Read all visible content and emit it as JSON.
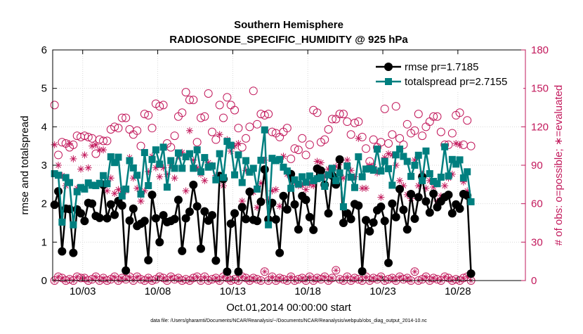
{
  "chart_data": {
    "type": "line",
    "title": "Southern Hemisphere",
    "subtitle": "RADIOSONDE_SPECIFIC_HUMIDITY @ 925 hPa",
    "xlabel": "Oct.01,2014 00:00:00 start",
    "ylabel": "rmse and totalspread",
    "y2label": "# of obs: o=possible; ∗=evaluated",
    "footnote": "data file: /Users/gharamti/Documents/NCAR/Reanalysis/~/Documents/NCAR/Reanalysis/webpub/obs_diag_output_2014-10.nc",
    "x_ticks": [
      "10/03",
      "10/08",
      "10/13",
      "10/18",
      "10/23",
      "10/28"
    ],
    "x_tick_days": [
      3,
      8,
      13,
      18,
      23,
      28
    ],
    "xlim_days": [
      1,
      32.5
    ],
    "x_step_days": 0.25,
    "x_first_day": 1.125,
    "ylim": [
      0,
      6
    ],
    "y_ticks": [
      "0",
      "1",
      "2",
      "3",
      "4",
      "5",
      "6"
    ],
    "y2lim": [
      0,
      180
    ],
    "y2_ticks": [
      "0",
      "30",
      "60",
      "90",
      "120",
      "150",
      "180"
    ],
    "legend_position": "top-right",
    "colors": {
      "rmse": "#000000",
      "totalspread": "#007f7f",
      "obs": "#c2185b"
    },
    "series": [
      {
        "name": "rmse pr=1.7185",
        "key": "rmse",
        "values": [
          1.97,
          2.32,
          0.76,
          1.87,
          1.86,
          0.72,
          1.85,
          1.75,
          1.55,
          2.02,
          2.0,
          1.68,
          1.63,
          2.49,
          1.62,
          1.98,
          1.71,
          2.07,
          1.95,
          0.26,
          1.56,
          1.87,
          1.42,
          1.48,
          1.55,
          0.53,
          2.23,
          1.62,
          1.0,
          1.7,
          1.52,
          1.55,
          1.6,
          2.1,
          0.77,
          1.62,
          1.79,
          2.49,
          1.93,
          0.83,
          1.8,
          1.56,
          1.7,
          0.52,
          2.72,
          2.64,
          0.23,
          1.48,
          1.75,
          0.23,
          1.91,
          1.6,
          2.31,
          1.58,
          1.55,
          2.05,
          2.89,
          1.59,
          2.02,
          1.59,
          0.72,
          2.2,
          1.85,
          2.77,
          1.98,
          1.33,
          2.2,
          2.1,
          1.65,
          1.32,
          2.91,
          2.86,
          2.49,
          1.75,
          2.73,
          2.5,
          3.15,
          1.5,
          1.75,
          1.6,
          1.99,
          1.95,
          0.24,
          1.57,
          1.28,
          1.51,
          1.83,
          1.92,
          1.55,
          0.46,
          2.0,
          1.65,
          2.38,
          1.84,
          1.33,
          2.25,
          1.61,
          2.17,
          2.7,
          2.06,
          1.77,
          2.26,
          1.91,
          2.06,
          2.17,
          2.23,
          1.75,
          1.98,
          1.87,
          2.25,
          2.21,
          0.18
        ]
      },
      {
        "name": "totalspread pr=2.7155",
        "key": "totalspread",
        "values": [
          2.78,
          2.74,
          1.52,
          2.68,
          2.55,
          1.45,
          2.31,
          2.42,
          2.38,
          2.54,
          2.48,
          2.47,
          2.53,
          2.73,
          2.52,
          3.22,
          3.07,
          3.21,
          2.2,
          2.38,
          3.12,
          2.93,
          2.74,
          2.25,
          3.33,
          2.47,
          3.15,
          3.4,
          3.03,
          3.47,
          2.43,
          3.12,
          2.92,
          3.32,
          2.92,
          3.22,
          3.3,
          2.92,
          3.4,
          2.83,
          3.2,
          2.95,
          2.98,
          2.62,
          3.3,
          2.68,
          3.62,
          3.52,
          2.75,
          3.27,
          2.55,
          3.12,
          2.82,
          2.92,
          2.38,
          3.13,
          3.92,
          1.45,
          3.18,
          3.12,
          3.15,
          2.95,
          2.85,
          2.4,
          2.62,
          2.51,
          2.7,
          2.56,
          2.72,
          2.6,
          2.65,
          2.68,
          2.45,
          2.75,
          2.92,
          2.6,
          2.8,
          1.92,
          2.98,
          2.69,
          2.42,
          3.22,
          2.7,
          2.9,
          2.91,
          2.87,
          3.42,
          2.85,
          3.1,
          2.91,
          2.48,
          3.27,
          3.42,
          3.23,
          3.1,
          2.71,
          3.0,
          3.26,
          2.6,
          3.37,
          2.78,
          2.58,
          2.52,
          2.69,
          3.48,
          2.72,
          3.15,
          3.03,
          3.14,
          2.67,
          2.83,
          2.05
        ]
      }
    ],
    "obs_series": [
      {
        "name": "possible",
        "marker": "circle",
        "axis": "right",
        "values": [
          137,
          98,
          108,
          107,
          104,
          106,
          113,
          112,
          113,
          112,
          111,
          99,
          110,
          109,
          109,
          118,
          120,
          119,
          127,
          127,
          118,
          114,
          117,
          105,
          130,
          129,
          119,
          138,
          136,
          137,
          107,
          104,
          113,
          128,
          131,
          147,
          141,
          141,
          108,
          127,
          128,
          146,
          116,
          110,
          137,
          127,
          143,
          137,
          133,
          119,
          104,
          111,
          120,
          148,
          122,
          130,
          129,
          130,
          116,
          115,
          112,
          116,
          119,
          95,
          103,
          102,
          111,
          98,
          106,
          133,
          131,
          108,
          110,
          118,
          126,
          126,
          130,
          130,
          124,
          114,
          123,
          124,
          112,
          103,
          93,
          110,
          104,
          108,
          134,
          107,
          114,
          136,
          111,
          106,
          122,
          115,
          117,
          130,
          113,
          120,
          124,
          128,
          128,
          116,
          106,
          106,
          115,
          129,
          131,
          106,
          125,
          105
        ]
      },
      {
        "name": "evaluated",
        "marker": "star",
        "axis": "right",
        "values": [
          106,
          90,
          82,
          74,
          107,
          95,
          72,
          87,
          98,
          88,
          105,
          106,
          102,
          102,
          70,
          80,
          68,
          71,
          70,
          70,
          96,
          80,
          72,
          62,
          70,
          85,
          97,
          88,
          81,
          88,
          83,
          90,
          80,
          97,
          100,
          70,
          117,
          94,
          88,
          83,
          78,
          92,
          90,
          82,
          114,
          74,
          110,
          101,
          105,
          107,
          62,
          86,
          70,
          69,
          57,
          76,
          94,
          63,
          70,
          71,
          58,
          97,
          83,
          80,
          77,
          74,
          74,
          71,
          75,
          74,
          93,
          92,
          81,
          87,
          83,
          89,
          92,
          80,
          94,
          86,
          81,
          111,
          72,
          72,
          90,
          89,
          84,
          65,
          96,
          99,
          98,
          90,
          78,
          74,
          67,
          64,
          94,
          74,
          83,
          72,
          78,
          73,
          62,
          66,
          74,
          80,
          83,
          107,
          106,
          77,
          70,
          62
        ]
      },
      {
        "name": "possible-base",
        "marker": "circle",
        "axis": "right",
        "values": [
          0,
          3,
          2,
          0,
          1,
          0,
          3,
          2,
          2,
          0,
          1,
          3,
          0,
          2,
          0,
          1,
          3,
          0,
          2,
          1,
          3,
          0,
          3,
          1,
          0,
          2,
          0,
          1,
          3,
          2,
          0,
          3,
          1,
          2,
          0,
          1,
          0,
          2,
          3,
          0,
          3,
          0,
          1,
          2,
          0,
          3,
          2,
          0,
          1,
          0,
          3,
          2,
          0,
          2,
          1,
          0,
          7,
          0,
          3,
          0,
          2,
          1,
          0,
          3,
          0,
          1,
          2,
          0,
          3,
          0,
          2,
          1,
          3,
          0,
          2,
          8,
          1,
          0,
          3,
          0,
          2,
          1,
          0,
          3,
          0,
          2,
          1,
          3,
          0,
          1,
          2,
          0,
          3,
          1,
          2,
          0,
          7,
          0,
          1,
          3,
          0,
          2,
          1,
          0,
          3,
          2,
          0,
          1,
          0,
          2,
          3,
          0
        ]
      }
    ]
  }
}
